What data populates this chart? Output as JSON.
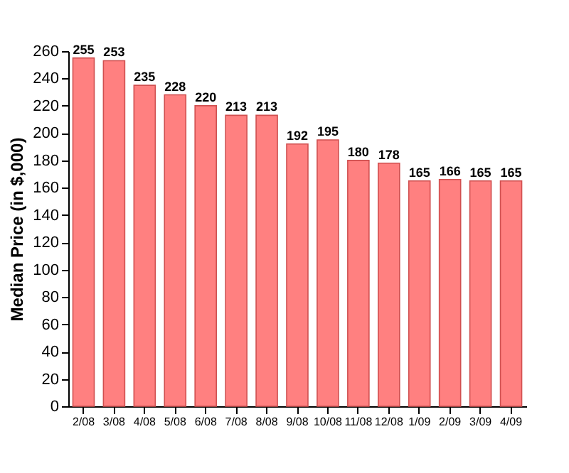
{
  "chart_data": {
    "type": "bar",
    "ylabel": "Median Price (in $,000)",
    "categories": [
      "2/08",
      "3/08",
      "4/08",
      "5/08",
      "6/08",
      "7/08",
      "8/08",
      "9/08",
      "10/08",
      "11/08",
      "12/08",
      "1/09",
      "2/09",
      "3/09",
      "4/09"
    ],
    "values": [
      255,
      253,
      235,
      228,
      220,
      213,
      213,
      192,
      195,
      180,
      178,
      165,
      166,
      165,
      165
    ],
    "color": "#ff8080",
    "ylim": [
      0,
      260
    ],
    "yticks": [
      0,
      20,
      40,
      60,
      80,
      100,
      120,
      140,
      160,
      180,
      200,
      220,
      240,
      260
    ],
    "grid": false,
    "data_labels": true
  }
}
